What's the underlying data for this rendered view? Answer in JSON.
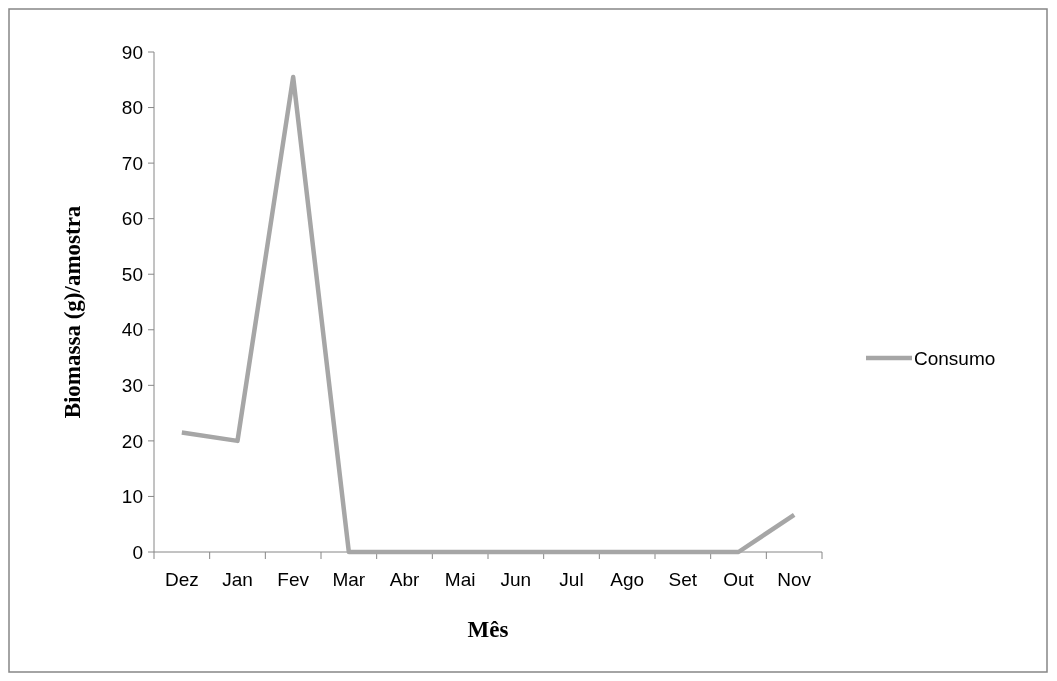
{
  "chart_data": {
    "type": "line",
    "xlabel": "Mês",
    "ylabel": "Biomassa (g)/amostra",
    "categories": [
      "Dez",
      "Jan",
      "Fev",
      "Mar",
      "Abr",
      "Mai",
      "Jun",
      "Jul",
      "Ago",
      "Set",
      "Out",
      "Nov"
    ],
    "series": [
      {
        "name": "Consumo",
        "color": "#a6a6a6",
        "values": [
          21.5,
          20,
          85.5,
          0,
          0,
          0,
          0,
          0,
          0,
          0,
          0,
          6.7
        ]
      }
    ],
    "ylim": [
      0,
      90
    ],
    "yticks": [
      0,
      10,
      20,
      30,
      40,
      50,
      60,
      70,
      80,
      90
    ],
    "grid": false,
    "legend": "right",
    "marker": "none",
    "line_style": "solid"
  }
}
